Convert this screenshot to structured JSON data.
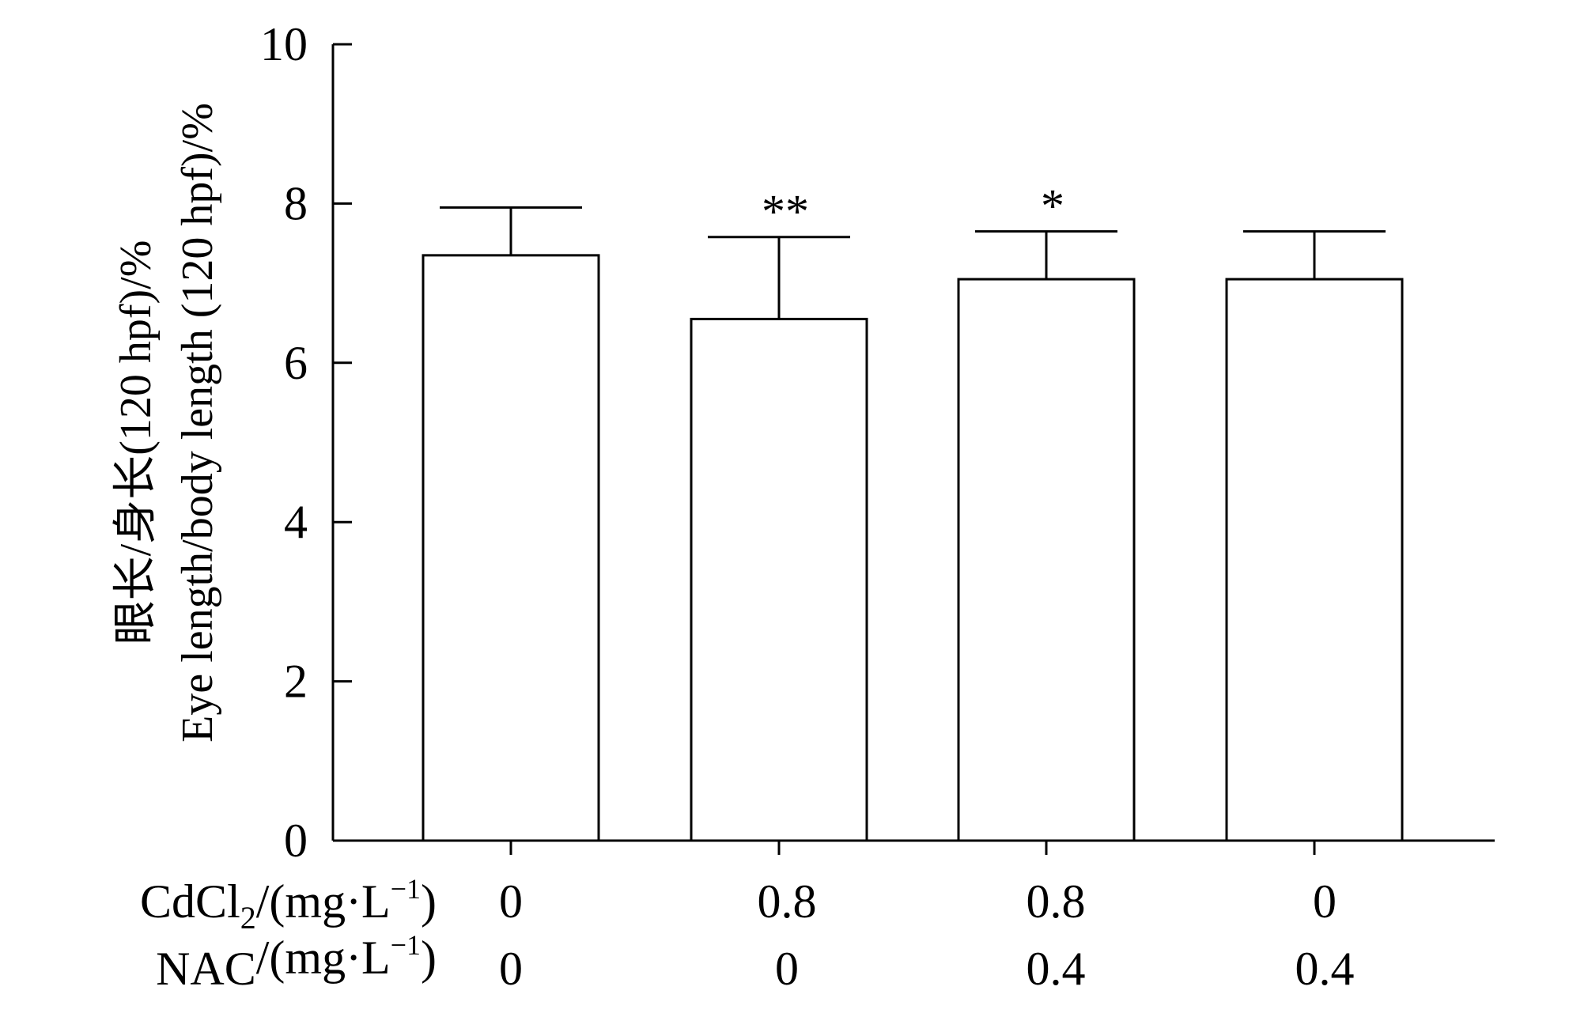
{
  "chart_data": {
    "type": "bar",
    "title": "",
    "ylabel_line1": "眼长/身长(120 hpf)/%",
    "ylabel_line2": "Eye length/body length (120 hpf)/%",
    "xlabel": "",
    "ylim": [
      0,
      10
    ],
    "yticks": [
      "0",
      "2",
      "4",
      "6",
      "8",
      "10"
    ],
    "bars_filled": false,
    "grid": false,
    "legend": "none",
    "series": [
      {
        "values": [
          7.35,
          6.55,
          7.05,
          7.05
        ],
        "errors": [
          0.6,
          1.03,
          0.6,
          0.6
        ],
        "significance": [
          "",
          "**",
          "*",
          ""
        ]
      }
    ],
    "factor_rows": [
      {
        "label_main": "CdCl",
        "label_sub": "2",
        "label_tail": "/(mg·L",
        "label_sup": "−1",
        "label_end": ")",
        "values": [
          "0",
          "0.8",
          "0.8",
          "0"
        ]
      },
      {
        "label_main": "NAC",
        "label_sub": "",
        "label_tail": "/(mg·L",
        "label_sup": "−1",
        "label_end": ")",
        "values": [
          "0",
          "0",
          "0.4",
          "0.4"
        ]
      }
    ]
  }
}
